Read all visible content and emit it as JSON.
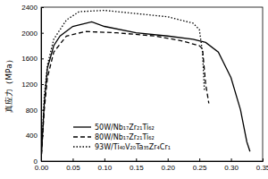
{
  "chart_data": {
    "type": "line",
    "y_label": "真应力（MPa）",
    "xlim": [
      0,
      0.35
    ],
    "xticks": [
      {
        "value": 0,
        "label": "0.00"
      },
      {
        "value": 0.05,
        "label": "0.05"
      },
      {
        "value": 0.1,
        "label": "0.10"
      },
      {
        "value": 0.15,
        "label": "0.15"
      },
      {
        "value": 0.2,
        "label": "0.20"
      },
      {
        "value": 0.25,
        "label": "0.25"
      },
      {
        "value": 0.3,
        "label": "0.30"
      },
      {
        "value": 0.35,
        "label": "0.35"
      }
    ],
    "ylim": [
      0,
      2400
    ],
    "yticks": [
      0,
      400,
      800,
      1200,
      1600,
      2000,
      2400
    ],
    "legend": "bottom-left",
    "series": [
      {
        "name": "50W/Nb₁₇Zr₂₁Ti₆₂",
        "color": "#000000",
        "line_style": "solid",
        "x": [
          0,
          0.005,
          0.01,
          0.02,
          0.03,
          0.05,
          0.08,
          0.1,
          0.15,
          0.2,
          0.24,
          0.26,
          0.28,
          0.3,
          0.315,
          0.325,
          0.33
        ],
        "values": [
          0,
          900,
          1450,
          1800,
          1950,
          2100,
          2170,
          2100,
          2000,
          1950,
          1900,
          1850,
          1700,
          1300,
          800,
          300,
          150
        ]
      },
      {
        "name": "80W/Nb₁₇Zr₂₁Ti₆₂",
        "color": "#000000",
        "line_style": "dashed",
        "x": [
          0,
          0.005,
          0.01,
          0.02,
          0.04,
          0.07,
          0.12,
          0.18,
          0.22,
          0.25,
          0.255,
          0.26,
          0.265
        ],
        "values": [
          0,
          800,
          1300,
          1700,
          1950,
          2020,
          2000,
          1950,
          1880,
          1800,
          1750,
          1200,
          900
        ]
      },
      {
        "name": "93W/Ti₄₀V₂₀Ta₃₅Zr₄Cr₁",
        "color": "#000000",
        "line_style": "dotted",
        "x": [
          0,
          0.005,
          0.01,
          0.02,
          0.04,
          0.06,
          0.1,
          0.15,
          0.2,
          0.24,
          0.25,
          0.255,
          0.258
        ],
        "values": [
          0,
          1000,
          1500,
          1900,
          2200,
          2330,
          2350,
          2300,
          2250,
          2150,
          2050,
          1700,
          1100
        ]
      }
    ]
  }
}
